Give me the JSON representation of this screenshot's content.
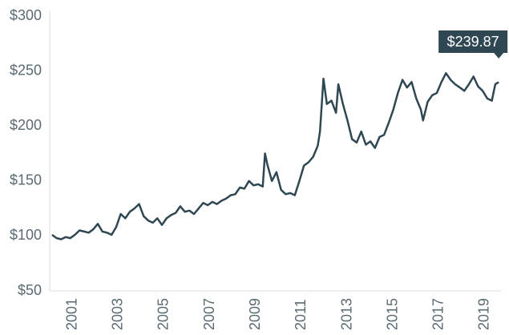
{
  "chart_data": {
    "type": "line",
    "x": [
      2000.1,
      2000.3,
      2000.5,
      2000.7,
      2000.9,
      2001.1,
      2001.3,
      2001.5,
      2001.7,
      2001.9,
      2002.1,
      2002.3,
      2002.5,
      2002.7,
      2002.9,
      2003.1,
      2003.3,
      2003.5,
      2003.7,
      2003.9,
      2004.1,
      2004.3,
      2004.5,
      2004.7,
      2004.9,
      2005.1,
      2005.3,
      2005.5,
      2005.7,
      2005.9,
      2006.1,
      2006.3,
      2006.5,
      2006.7,
      2006.9,
      2007.1,
      2007.3,
      2007.5,
      2007.7,
      2007.9,
      2008.1,
      2008.3,
      2008.5,
      2008.7,
      2008.9,
      2009.1,
      2009.3,
      2009.4,
      2009.5,
      2009.7,
      2009.9,
      2010.1,
      2010.3,
      2010.5,
      2010.7,
      2010.9,
      2011.1,
      2011.3,
      2011.5,
      2011.7,
      2011.8,
      2011.95,
      2012.1,
      2012.3,
      2012.5,
      2012.6,
      2012.8,
      2013.0,
      2013.2,
      2013.4,
      2013.6,
      2013.8,
      2014.0,
      2014.2,
      2014.4,
      2014.6,
      2014.8,
      2015.0,
      2015.2,
      2015.4,
      2015.6,
      2015.8,
      2016.0,
      2016.2,
      2016.3,
      2016.5,
      2016.7,
      2016.9,
      2017.1,
      2017.3,
      2017.5,
      2017.7,
      2017.9,
      2018.1,
      2018.3,
      2018.5,
      2018.7,
      2018.9,
      2019.1,
      2019.3,
      2019.45,
      2019.6
    ],
    "series": [
      {
        "color": "#2f4753",
        "values": [
          101,
          98,
          97,
          99,
          98,
          101,
          105,
          104,
          103,
          106,
          111,
          104,
          103,
          101,
          108,
          120,
          116,
          122,
          125,
          129,
          118,
          114,
          112,
          116,
          110,
          116,
          119,
          121,
          127,
          122,
          123,
          120,
          125,
          130,
          128,
          131,
          129,
          132,
          134,
          137,
          138,
          144,
          143,
          150,
          146,
          147,
          145,
          175,
          165,
          150,
          158,
          142,
          138,
          139,
          137,
          150,
          164,
          167,
          172,
          182,
          195,
          243,
          220,
          223,
          212,
          238,
          220,
          205,
          188,
          185,
          195,
          183,
          186,
          180,
          190,
          192,
          203,
          215,
          230,
          242,
          235,
          240,
          225,
          215,
          205,
          222,
          228,
          230,
          240,
          248,
          242,
          238,
          235,
          232,
          238,
          245,
          236,
          232,
          225,
          223,
          238,
          239.87
        ]
      }
    ],
    "annotation": {
      "label": "$239.87"
    },
    "xlim": [
      2000,
      2019.7
    ],
    "xticks": [
      2001,
      2003,
      2005,
      2007,
      2009,
      2011,
      2013,
      2015,
      2017,
      2019
    ],
    "ylim": [
      50,
      300
    ],
    "yticks": [
      {
        "value": 50,
        "label": "$50"
      },
      {
        "value": 100,
        "label": "$100"
      },
      {
        "value": 150,
        "label": "$150"
      },
      {
        "value": 200,
        "label": "$200"
      },
      {
        "value": 250,
        "label": "$250"
      },
      {
        "value": 300,
        "label": "$300"
      }
    ]
  }
}
